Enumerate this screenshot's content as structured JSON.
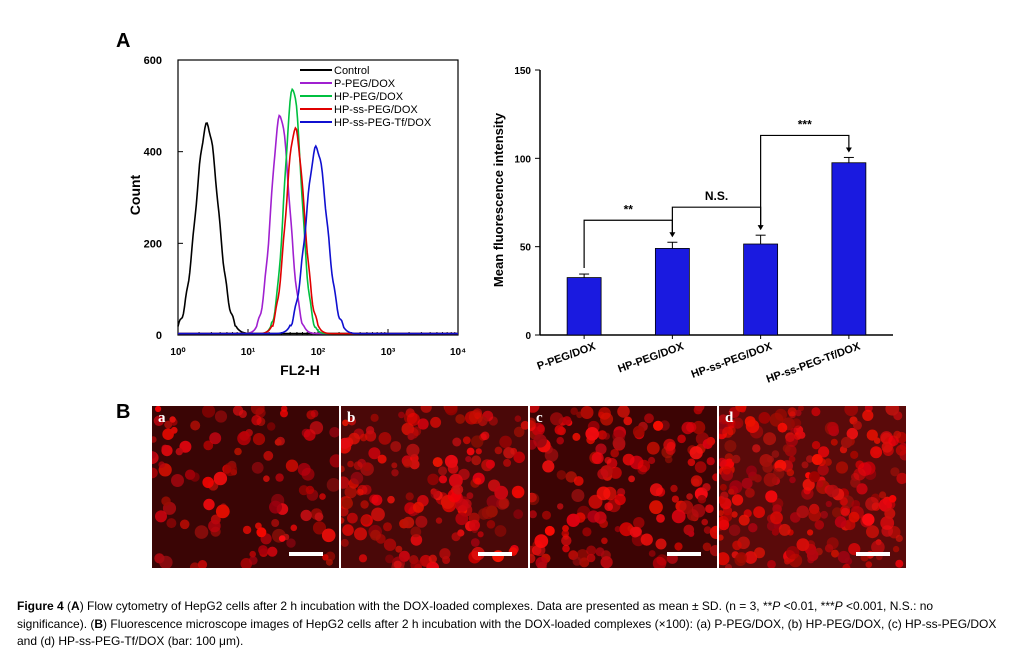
{
  "panel_a_label": "A",
  "panel_b_label": "B",
  "chart_data": [
    {
      "type": "line",
      "xlabel": "FL2-H",
      "ylabel": "Count",
      "x_scale": "log",
      "xlim": [
        1,
        10000
      ],
      "ylim": [
        0,
        600
      ],
      "x_ticks": [
        "10⁰",
        "10¹",
        "10²",
        "10³",
        "10⁴"
      ],
      "y_ticks": [
        "0",
        "200",
        "400",
        "600"
      ],
      "legend_position": "top-right",
      "series": [
        {
          "name": "Control",
          "color": "#000000",
          "peak_x": 2.6,
          "peak_y": 455
        },
        {
          "name": "P-PEG/DOX",
          "color": "#a020d0",
          "peak_x": 29,
          "peak_y": 475
        },
        {
          "name": "HP-PEG/DOX",
          "color": "#00c040",
          "peak_x": 44,
          "peak_y": 535
        },
        {
          "name": "HP-ss-PEG/DOX",
          "color": "#e00000",
          "peak_x": 47,
          "peak_y": 445
        },
        {
          "name": "HP-ss-PEG-Tf/DOX",
          "color": "#1010d0",
          "peak_x": 95,
          "peak_y": 405
        }
      ]
    },
    {
      "type": "bar",
      "ylabel": "Mean fluorescence intensity",
      "ylim": [
        0,
        150
      ],
      "y_ticks": [
        "0",
        "50",
        "100",
        "150"
      ],
      "categories": [
        "P-PEG/DOX",
        "HP-PEG/DOX",
        "HP-ss-PEG/DOX",
        "HP-ss-PEG-Tf/DOX"
      ],
      "values": [
        32.5,
        49,
        51.5,
        97.5
      ],
      "errors": [
        2,
        3.5,
        5,
        3
      ],
      "bar_color": "#1a1ae0",
      "annotations": [
        "**",
        "N.S.",
        "***"
      ]
    }
  ],
  "micrographs": [
    {
      "label": "a"
    },
    {
      "label": "b"
    },
    {
      "label": "c"
    },
    {
      "label": "d"
    }
  ],
  "caption": {
    "figure_label": "Figure 4",
    "text_1": " (",
    "A": "A",
    "text_2": ") Flow cytometry of HepG2 cells after 2 h incubation with the DOX-loaded complexes. Data are presented as mean ± SD. (n = 3, **",
    "P1": "P",
    "text_3": " <0.01, ***",
    "P2": "P",
    "text_4": " <0.001, N.S.: no significance). (",
    "B": "B",
    "text_5": ") Fluorescence microscope images of HepG2 cells after 2 h incubation with the DOX-loaded complexes (×100): (a) P-PEG/DOX, (b) HP-PEG/DOX, (c) HP-ss-PEG/DOX and (d) HP-ss-PEG-Tf/DOX (bar: 100 μm)."
  }
}
